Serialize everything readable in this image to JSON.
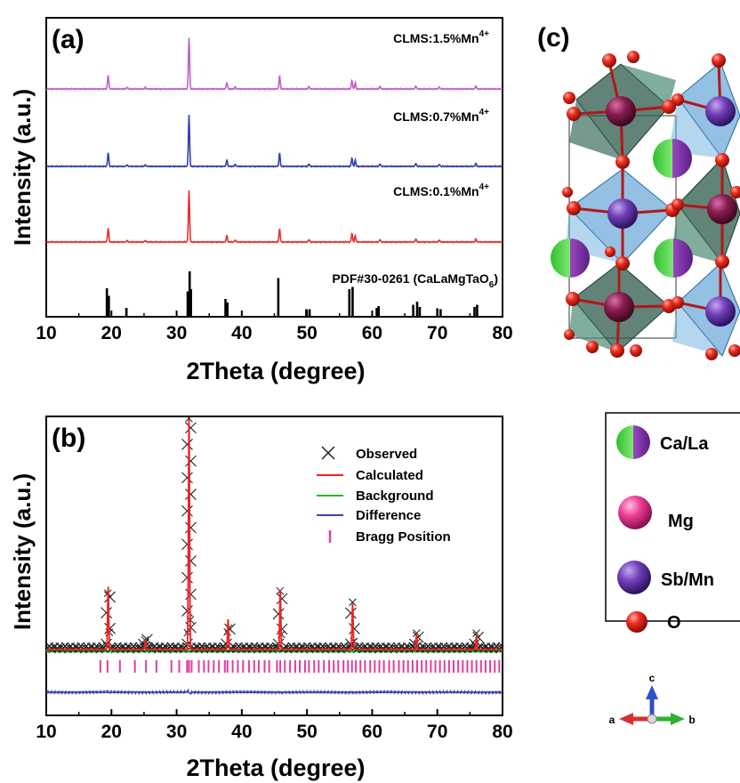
{
  "panels": {
    "a_label": "(a)",
    "b_label": "(b)",
    "c_label": "(c)"
  },
  "colors": {
    "purple_series": "#c060c8",
    "blue_series": "#3040b0",
    "red_series": "#e83030",
    "reference_bars": "#000000",
    "observed": "#222222",
    "calculated": "#ee2222",
    "background": "#22bb22",
    "difference": "#3344aa",
    "bragg": "#e0409a"
  },
  "legend_c": {
    "items": [
      {
        "label": "Ca/La",
        "icon": "ca-la-sphere-icon"
      },
      {
        "label": "Mg",
        "icon": "mg-sphere-icon"
      },
      {
        "label": "Sb/Mn",
        "icon": "sb-mn-sphere-icon"
      },
      {
        "label": "O",
        "icon": "o-sphere-icon"
      }
    ]
  },
  "axes_c": {
    "c": "c",
    "a": "a",
    "b": "b"
  },
  "chart_data": [
    {
      "type": "line",
      "panel": "(a)",
      "xlabel": "2Theta (degree)",
      "ylabel": "Intensity (a.u.)",
      "xlim": [
        10,
        80
      ],
      "xticks": [
        10,
        20,
        30,
        40,
        50,
        60,
        70,
        80
      ],
      "series": [
        {
          "name": "CLMS:1.5%Mn",
          "superscript": "4+",
          "peaks": [
            [
              19.5,
              0.27
            ],
            [
              22.4,
              0.03
            ],
            [
              25.2,
              0.03
            ],
            [
              31.9,
              1.0
            ],
            [
              37.7,
              0.13
            ],
            [
              39.0,
              0.04
            ],
            [
              45.8,
              0.26
            ],
            [
              50.3,
              0.05
            ],
            [
              56.9,
              0.17
            ],
            [
              57.4,
              0.12
            ],
            [
              61.2,
              0.05
            ],
            [
              66.7,
              0.06
            ],
            [
              70.3,
              0.04
            ],
            [
              75.9,
              0.06
            ]
          ]
        },
        {
          "name": "CLMS:0.7%Mn",
          "superscript": "4+",
          "peaks": [
            [
              19.5,
              0.27
            ],
            [
              22.4,
              0.03
            ],
            [
              25.2,
              0.03
            ],
            [
              31.9,
              1.0
            ],
            [
              37.7,
              0.13
            ],
            [
              39.0,
              0.04
            ],
            [
              45.8,
              0.26
            ],
            [
              50.3,
              0.05
            ],
            [
              56.9,
              0.17
            ],
            [
              57.4,
              0.12
            ],
            [
              61.2,
              0.05
            ],
            [
              66.7,
              0.06
            ],
            [
              70.3,
              0.04
            ],
            [
              75.9,
              0.06
            ]
          ]
        },
        {
          "name": "CLMS:0.1%Mn",
          "superscript": "4+",
          "peaks": [
            [
              19.5,
              0.27
            ],
            [
              22.4,
              0.03
            ],
            [
              25.2,
              0.03
            ],
            [
              31.9,
              1.0
            ],
            [
              37.7,
              0.13
            ],
            [
              39.0,
              0.04
            ],
            [
              45.8,
              0.26
            ],
            [
              50.3,
              0.05
            ],
            [
              56.9,
              0.17
            ],
            [
              57.4,
              0.12
            ],
            [
              61.2,
              0.05
            ],
            [
              66.7,
              0.06
            ],
            [
              70.3,
              0.04
            ],
            [
              75.9,
              0.06
            ]
          ]
        }
      ],
      "reference": {
        "name": "PDF#30-0261 (CaLaMgTaO",
        "subscript": "6",
        "suffix": ")",
        "bars": [
          [
            19.3,
            0.62
          ],
          [
            19.6,
            0.45
          ],
          [
            22.3,
            0.18
          ],
          [
            31.7,
            0.55
          ],
          [
            32.0,
            1.0
          ],
          [
            32.2,
            0.6
          ],
          [
            37.5,
            0.38
          ],
          [
            37.8,
            0.3
          ],
          [
            45.6,
            0.85
          ],
          [
            49.9,
            0.15
          ],
          [
            50.4,
            0.15
          ],
          [
            56.5,
            0.6
          ],
          [
            57.0,
            0.65
          ],
          [
            60.7,
            0.18
          ],
          [
            61.0,
            0.22
          ],
          [
            66.3,
            0.25
          ],
          [
            66.9,
            0.32
          ],
          [
            67.3,
            0.2
          ],
          [
            70.0,
            0.17
          ],
          [
            70.5,
            0.15
          ],
          [
            75.7,
            0.2
          ],
          [
            76.1,
            0.25
          ]
        ]
      }
    },
    {
      "type": "scatter",
      "panel": "(b)",
      "xlabel": "2Theta (degree)",
      "ylabel": "Intensity (a.u.)",
      "xlim": [
        10,
        80
      ],
      "xticks": [
        10,
        20,
        30,
        40,
        50,
        60,
        70,
        80
      ],
      "legend": [
        "Observed",
        "Calculated",
        "Background",
        "Difference",
        "Bragg Position"
      ],
      "peaks": [
        [
          19.5,
          0.27
        ],
        [
          25.2,
          0.04
        ],
        [
          31.9,
          1.0
        ],
        [
          37.9,
          0.13
        ],
        [
          45.9,
          0.26
        ],
        [
          57.0,
          0.2
        ],
        [
          66.8,
          0.06
        ],
        [
          76.0,
          0.06
        ]
      ],
      "bragg_positions": [
        18.3,
        19.4,
        21.3,
        23.6,
        25.3,
        26.9,
        29.2,
        30.4,
        31.6,
        31.9,
        32.3,
        33.4,
        34.2,
        34.9,
        35.7,
        36.5,
        37.4,
        37.8,
        38.6,
        39.4,
        40.2,
        41.1,
        41.9,
        42.6,
        43.5,
        44.2,
        45.4,
        45.9,
        46.6,
        47.4,
        48.2,
        48.9,
        49.7,
        50.3,
        51.1,
        51.8,
        52.6,
        53.4,
        54.1,
        54.8,
        55.6,
        56.3,
        56.9,
        57.5,
        58.2,
        58.9,
        59.7,
        60.4,
        61.1,
        61.8,
        62.6,
        63.3,
        64.1,
        64.8,
        65.5,
        66.2,
        66.9,
        67.6,
        68.3,
        69.0,
        69.7,
        70.4,
        71.1,
        71.8,
        72.5,
        73.2,
        73.9,
        74.6,
        75.3,
        76.0,
        76.7,
        77.4,
        78.1,
        78.8,
        79.5
      ]
    }
  ]
}
